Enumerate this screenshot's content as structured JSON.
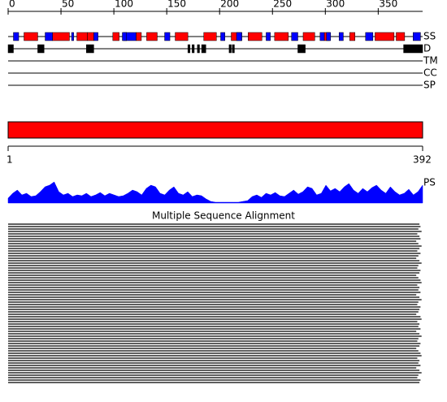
{
  "ruler": {
    "ticks": [
      0,
      50,
      100,
      150,
      200,
      250,
      300,
      350
    ],
    "length": 392
  },
  "tracks": {
    "labels": [
      "SS",
      "D",
      "TM",
      "CC",
      "SP"
    ]
  },
  "ss": {
    "helix_color": "#ff0000",
    "strand_color": "#0000ff",
    "helices": [
      [
        15,
        28
      ],
      [
        42,
        58
      ],
      [
        65,
        75
      ],
      [
        75,
        81
      ],
      [
        99,
        105
      ],
      [
        109,
        112
      ],
      [
        121,
        126
      ],
      [
        131,
        141
      ],
      [
        158,
        170
      ],
      [
        185,
        197
      ],
      [
        211,
        221
      ],
      [
        227,
        240
      ],
      [
        252,
        265
      ],
      [
        279,
        290
      ],
      [
        299,
        304
      ],
      [
        323,
        328
      ],
      [
        347,
        365
      ],
      [
        367,
        375
      ]
    ],
    "strands": [
      [
        5,
        10
      ],
      [
        35,
        42
      ],
      [
        60,
        62
      ],
      [
        81,
        85
      ],
      [
        108,
        112
      ],
      [
        112,
        121
      ],
      [
        148,
        153
      ],
      [
        201,
        205
      ],
      [
        216,
        221
      ],
      [
        244,
        248
      ],
      [
        268,
        274
      ],
      [
        295,
        299
      ],
      [
        301,
        305
      ],
      [
        313,
        317
      ],
      [
        338,
        345
      ],
      [
        383,
        390
      ]
    ]
  },
  "disorder": [
    [
      0,
      5
    ],
    [
      28,
      34
    ],
    [
      74,
      81
    ],
    [
      170,
      172
    ],
    [
      174,
      176
    ],
    [
      179,
      181
    ],
    [
      183,
      187
    ],
    [
      209,
      211
    ],
    [
      212,
      214
    ],
    [
      274,
      281
    ],
    [
      374,
      392
    ]
  ],
  "domain_bar": {
    "start": 1,
    "end": 392,
    "color": "#ff0000"
  },
  "ps": {
    "label": "PS",
    "color": "#0000ff",
    "values": [
      6,
      12,
      16,
      10,
      12,
      8,
      9,
      14,
      20,
      22,
      26,
      14,
      10,
      12,
      8,
      10,
      9,
      12,
      8,
      10,
      13,
      9,
      12,
      10,
      8,
      9,
      12,
      16,
      14,
      10,
      18,
      22,
      20,
      12,
      10,
      16,
      20,
      12,
      10,
      14,
      8,
      10,
      9,
      5,
      2,
      1,
      1,
      1,
      1,
      1,
      1,
      2,
      3,
      8,
      10,
      7,
      12,
      10,
      13,
      9,
      8,
      12,
      16,
      11,
      14,
      20,
      18,
      10,
      12,
      22,
      15,
      18,
      14,
      20,
      24,
      16,
      12,
      18,
      14,
      19,
      22,
      16,
      12,
      20,
      14,
      10,
      12,
      17,
      10,
      14,
      22
    ]
  },
  "msa": {
    "title": "Multiple Sequence Alignment",
    "ends": [
      389,
      390,
      388,
      391,
      387,
      389,
      390,
      386,
      388,
      391,
      389,
      387,
      390,
      388,
      386,
      389,
      391,
      388,
      387,
      390,
      389,
      386,
      388,
      390,
      391,
      387,
      389,
      388,
      390,
      386,
      389,
      391,
      388,
      387,
      390,
      389,
      388,
      386,
      390,
      391,
      387,
      389,
      388,
      390,
      386,
      389,
      391,
      388,
      387,
      390,
      389,
      386,
      388,
      390,
      391,
      387,
      389,
      388,
      390,
      386,
      389,
      391,
      388,
      387,
      390,
      389
    ]
  }
}
